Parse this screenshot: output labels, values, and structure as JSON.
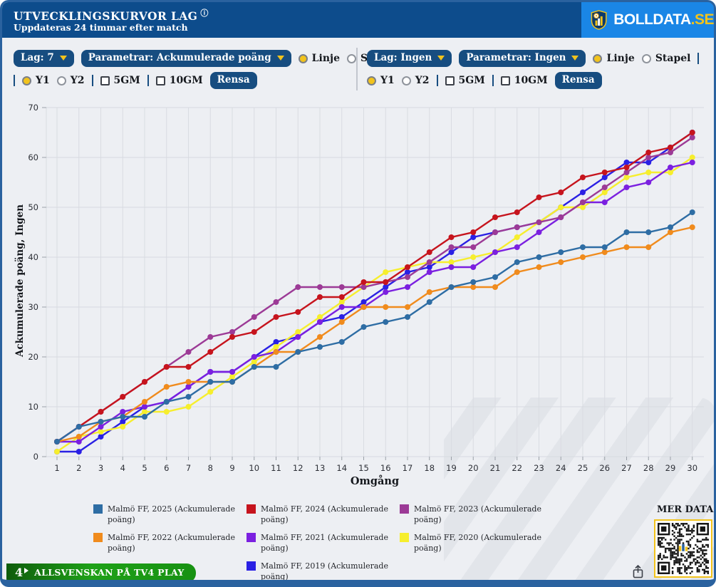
{
  "header": {
    "title": "UTVECKLINGSKURVOR LAG",
    "subtitle": "Uppdateras 24 timmar efter match",
    "brand_name": "BOLLDATA",
    "brand_tld": ".SE"
  },
  "controls": {
    "left": {
      "lag": "Lag: 7",
      "parametrar": "Parametrar: Ackumulerade poäng",
      "linje": "Linje",
      "stapel": "Stapel",
      "y1": "Y1",
      "y2": "Y2",
      "gm5": "5GM",
      "gm10": "10GM",
      "rensa": "Rensa",
      "selected_type": "Linje",
      "selected_axis": "Y1",
      "gm5_checked": false,
      "gm10_checked": false
    },
    "right": {
      "lag": "Lag: Ingen",
      "parametrar": "Parametrar: Ingen",
      "linje": "Linje",
      "stapel": "Stapel",
      "y1": "Y1",
      "y2": "Y2",
      "gm5": "5GM",
      "gm10": "10GM",
      "rensa": "Rensa",
      "selected_type": "Linje",
      "selected_axis": "Y1",
      "gm5_checked": false,
      "gm10_checked": false
    }
  },
  "chart_data": {
    "type": "line",
    "xlabel": "Omgång",
    "ylabel": "Ackumulerade poäng, Ingen",
    "x": [
      1,
      2,
      3,
      4,
      5,
      6,
      7,
      8,
      9,
      10,
      11,
      12,
      13,
      14,
      15,
      16,
      17,
      18,
      19,
      20,
      21,
      22,
      23,
      24,
      25,
      26,
      27,
      28,
      29,
      30
    ],
    "xlim": [
      1,
      30
    ],
    "ylim": [
      0,
      70
    ],
    "yticks": [
      0,
      10,
      20,
      30,
      40,
      50,
      60,
      70
    ],
    "grid": true,
    "legend_position": "bottom",
    "series": [
      {
        "name": "Malmö FF, 2025 (Ackumulerade poäng)",
        "color": "#2e6da4",
        "values": [
          3,
          6,
          7,
          8,
          8,
          11,
          12,
          15,
          15,
          18,
          18,
          21,
          22,
          23,
          26,
          27,
          28,
          31,
          34,
          35,
          36,
          39,
          40,
          41,
          42,
          42,
          45,
          45,
          46,
          49
        ]
      },
      {
        "name": "Malmö FF, 2024 (Ackumulerade poäng)",
        "color": "#c6141d",
        "values": [
          3,
          6,
          9,
          12,
          15,
          18,
          18,
          21,
          24,
          25,
          28,
          29,
          32,
          32,
          35,
          35,
          38,
          41,
          44,
          45,
          48,
          49,
          52,
          53,
          56,
          57,
          58,
          61,
          62,
          65
        ]
      },
      {
        "name": "Malmö FF, 2023 (Ackumulerade poäng)",
        "color": "#9c3a96",
        "values": [
          3,
          6,
          9,
          12,
          15,
          18,
          21,
          24,
          25,
          28,
          31,
          34,
          34,
          34,
          34,
          35,
          36,
          39,
          42,
          42,
          45,
          46,
          47,
          48,
          51,
          54,
          57,
          60,
          61,
          64
        ]
      },
      {
        "name": "Malmö FF, 2022 (Ackumulerade poäng)",
        "color": "#f08b1d",
        "values": [
          3,
          4,
          7,
          8,
          11,
          14,
          15,
          15,
          15,
          18,
          21,
          21,
          24,
          27,
          30,
          30,
          30,
          33,
          34,
          34,
          34,
          37,
          38,
          39,
          40,
          41,
          42,
          42,
          45,
          46
        ]
      },
      {
        "name": "Malmö FF, 2021 (Ackumulerade poäng)",
        "color": "#7b20e0",
        "values": [
          3,
          3,
          6,
          9,
          10,
          11,
          14,
          17,
          17,
          20,
          21,
          24,
          27,
          30,
          30,
          33,
          34,
          37,
          38,
          38,
          41,
          42,
          45,
          48,
          51,
          51,
          54,
          55,
          58,
          59
        ]
      },
      {
        "name": "Malmö FF, 2020 (Ackumulerade poäng)",
        "color": "#f6ee2d",
        "values": [
          1,
          4,
          5,
          6,
          9,
          9,
          10,
          13,
          16,
          19,
          22,
          25,
          28,
          31,
          34,
          37,
          38,
          39,
          39,
          40,
          41,
          44,
          47,
          50,
          50,
          53,
          56,
          57,
          57,
          60
        ]
      },
      {
        "name": "Malmö FF, 2019 (Ackumulerade poäng)",
        "color": "#2a20e4",
        "values": [
          1,
          1,
          4,
          7,
          10,
          11,
          14,
          17,
          17,
          20,
          23,
          24,
          27,
          28,
          31,
          34,
          37,
          38,
          41,
          44,
          45,
          46,
          47,
          50,
          53,
          56,
          59,
          59,
          62,
          65
        ]
      }
    ]
  },
  "footer": {
    "mer_data": "MER DATA",
    "tv4_logo": "4",
    "tv4_badge": "ALLSVENSKAN PÅ TV4 PLAY"
  }
}
